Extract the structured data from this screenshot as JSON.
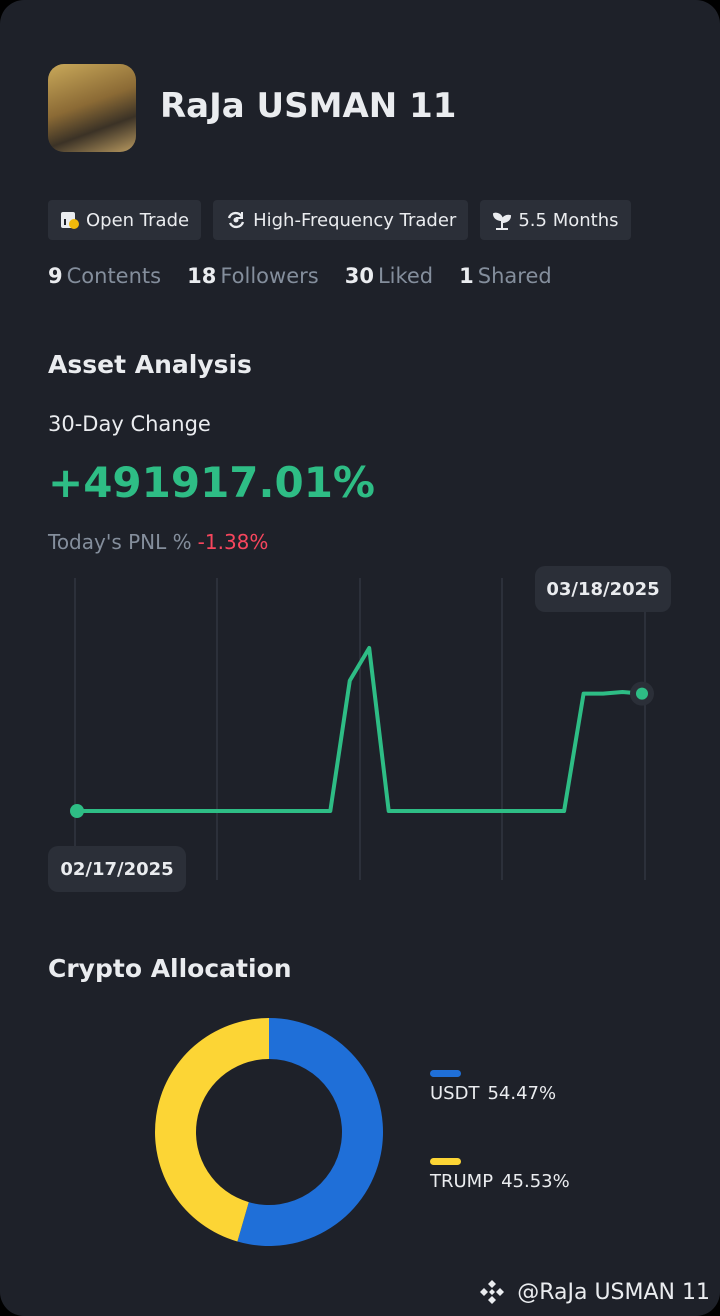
{
  "profile": {
    "name": "RaJa USMAN 11"
  },
  "badges": [
    "Open Trade",
    "High-Frequency Trader",
    "5.5 Months"
  ],
  "stats": [
    {
      "value": 9,
      "label": "Contents"
    },
    {
      "value": 18,
      "label": "Followers"
    },
    {
      "value": 30,
      "label": "Liked"
    },
    {
      "value": 1,
      "label": "Shared"
    }
  ],
  "asset_analysis": {
    "title": "Asset Analysis",
    "change_label": "30-Day Change",
    "change_value": "+491917.01%",
    "pnl_label": "Today's PNL %",
    "pnl_value": "-1.38%"
  },
  "chart_data": [
    {
      "type": "line",
      "color": "#2ebd85",
      "categories": [
        "02/17/2025",
        null,
        null,
        null,
        null,
        null,
        null,
        null,
        null,
        null,
        null,
        null,
        null,
        null,
        null,
        null,
        null,
        null,
        null,
        null,
        null,
        null,
        null,
        null,
        null,
        null,
        null,
        null,
        null,
        "03/18/2025"
      ],
      "values": [
        0,
        0,
        0,
        0,
        0,
        0,
        0,
        0,
        0,
        0,
        0,
        0,
        0,
        0,
        80,
        100,
        0,
        0,
        0,
        0,
        0,
        0,
        0,
        0,
        0,
        0,
        72,
        72,
        73,
        72
      ],
      "ylim": [
        0,
        100
      ]
    },
    {
      "type": "pie",
      "title": "Crypto Allocation",
      "categories": [
        "USDT",
        "TRUMP"
      ],
      "values": [
        54.47,
        45.53
      ],
      "value_labels": [
        "54.47%",
        "45.53%"
      ],
      "colors": [
        "#1f6fd8",
        "#fcd535"
      ]
    }
  ],
  "footer": {
    "watermark": "@RaJa USMAN 11"
  }
}
